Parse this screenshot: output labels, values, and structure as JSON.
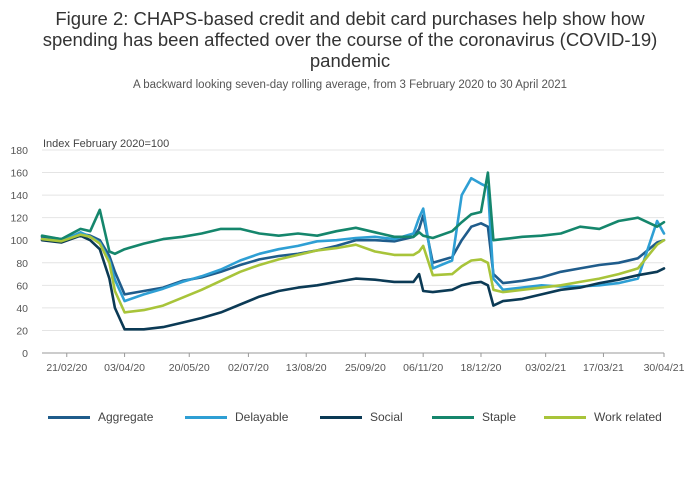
{
  "title_line1": "Figure 2: CHAPS-based credit and debit card purchases help show how",
  "title_line2": "spending has been affected over the course of the coronavirus (COVID-19)",
  "title_line3": "pandemic",
  "subtitle": "A backward looking seven-day rolling average, from 3 February 2020 to 30 April 2021",
  "chart_data": {
    "type": "line",
    "ylabel": "Index February 2020=100",
    "ylim": [
      0,
      180
    ],
    "yticks": [
      0,
      20,
      40,
      60,
      80,
      100,
      120,
      140,
      160,
      180
    ],
    "xlim": [
      "2020-02-03",
      "2021-04-30"
    ],
    "xtick_labels": [
      "21/02/20",
      "03/04/20",
      "20/05/20",
      "02/07/20",
      "13/08/20",
      "25/09/20",
      "06/11/20",
      "18/12/20",
      "03/02/21",
      "17/03/21",
      "30/04/21"
    ],
    "xtick_dates": [
      "2020-02-21",
      "2020-04-03",
      "2020-05-20",
      "2020-07-02",
      "2020-08-13",
      "2020-09-25",
      "2020-11-06",
      "2020-12-18",
      "2021-02-03",
      "2021-03-17",
      "2021-04-30"
    ],
    "grid": "horizontal",
    "legend_position": "bottom",
    "x": [
      "2020-02-03",
      "2020-02-17",
      "2020-03-02",
      "2020-03-09",
      "2020-03-16",
      "2020-03-23",
      "2020-03-27",
      "2020-04-03",
      "2020-04-17",
      "2020-05-01",
      "2020-05-15",
      "2020-05-29",
      "2020-06-12",
      "2020-06-26",
      "2020-07-10",
      "2020-07-24",
      "2020-08-07",
      "2020-08-21",
      "2020-09-04",
      "2020-09-18",
      "2020-10-02",
      "2020-10-16",
      "2020-10-30",
      "2020-11-03",
      "2020-11-06",
      "2020-11-13",
      "2020-11-27",
      "2020-12-04",
      "2020-12-11",
      "2020-12-18",
      "2020-12-23",
      "2020-12-27",
      "2021-01-03",
      "2021-01-17",
      "2021-01-31",
      "2021-02-14",
      "2021-02-28",
      "2021-03-14",
      "2021-03-28",
      "2021-04-11",
      "2021-04-25",
      "2021-04-30"
    ],
    "series": [
      {
        "name": "Aggregate",
        "color": "#1f5c8b",
        "values": [
          103,
          101,
          106,
          104,
          100,
          86,
          72,
          52,
          55,
          58,
          64,
          67,
          72,
          78,
          83,
          86,
          88,
          91,
          95,
          100,
          100,
          99,
          103,
          110,
          122,
          80,
          85,
          100,
          112,
          115,
          112,
          70,
          62,
          64,
          67,
          72,
          75,
          78,
          80,
          84,
          98,
          100
        ]
      },
      {
        "name": "Delayable",
        "color": "#2e9fd4",
        "values": [
          101,
          99,
          107,
          103,
          98,
          82,
          65,
          46,
          52,
          57,
          63,
          68,
          74,
          82,
          88,
          92,
          95,
          99,
          100,
          102,
          103,
          101,
          106,
          120,
          128,
          75,
          82,
          140,
          155,
          150,
          147,
          66,
          56,
          58,
          60,
          59,
          59,
          60,
          62,
          66,
          117,
          106
        ]
      },
      {
        "name": "Social",
        "color": "#0b3a55",
        "values": [
          100,
          98,
          104,
          100,
          92,
          66,
          40,
          21,
          21,
          23,
          27,
          31,
          36,
          43,
          50,
          55,
          58,
          60,
          63,
          66,
          65,
          63,
          63,
          70,
          55,
          54,
          56,
          60,
          62,
          63,
          60,
          42,
          46,
          48,
          52,
          56,
          58,
          62,
          65,
          69,
          72,
          75
        ]
      },
      {
        "name": "Staple",
        "color": "#15866c",
        "values": [
          104,
          101,
          110,
          108,
          127,
          90,
          88,
          92,
          97,
          101,
          103,
          106,
          110,
          110,
          106,
          104,
          106,
          104,
          108,
          111,
          107,
          103,
          103,
          107,
          104,
          102,
          108,
          116,
          123,
          125,
          160,
          100,
          101,
          103,
          104,
          106,
          112,
          110,
          117,
          120,
          112,
          116
        ]
      },
      {
        "name": "Work related",
        "color": "#a8c43a",
        "values": [
          101,
          99,
          105,
          103,
          97,
          80,
          55,
          36,
          38,
          42,
          49,
          56,
          64,
          72,
          78,
          83,
          87,
          91,
          93,
          96,
          90,
          87,
          87,
          90,
          95,
          69,
          70,
          77,
          82,
          83,
          80,
          56,
          54,
          56,
          58,
          60,
          63,
          66,
          70,
          75,
          96,
          100
        ]
      }
    ]
  }
}
